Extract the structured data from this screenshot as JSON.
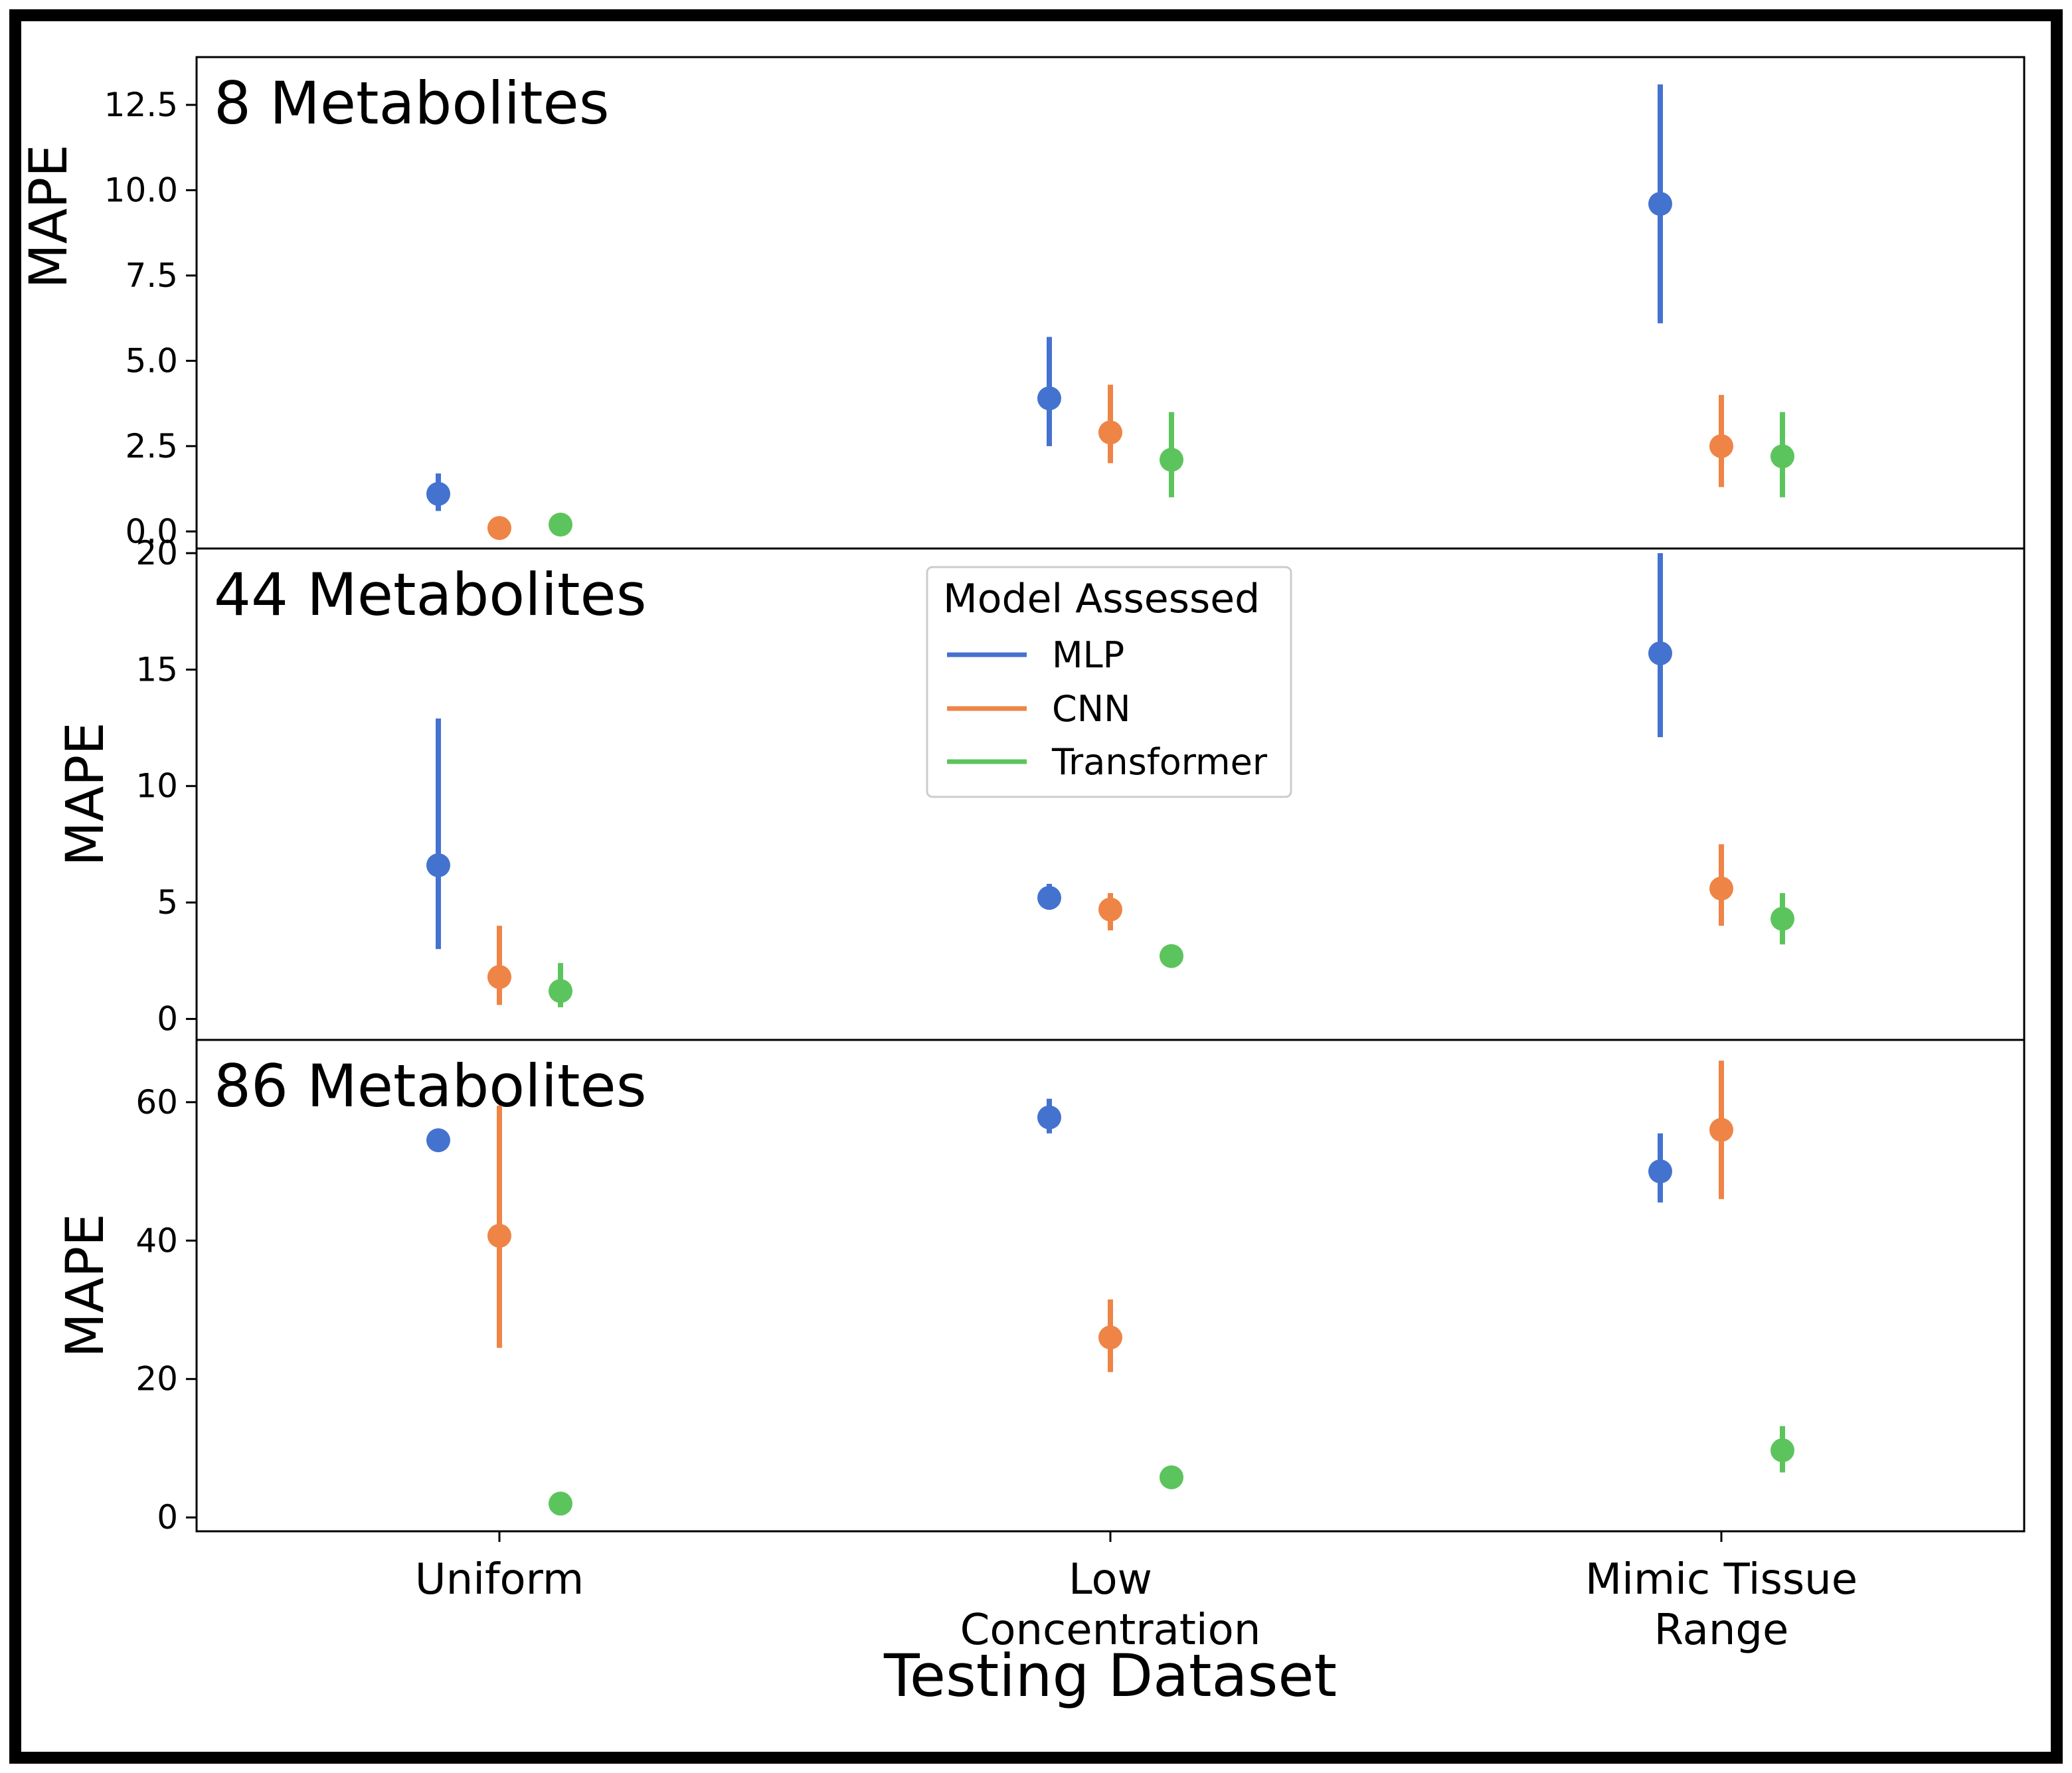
{
  "chart_data": {
    "type": "pointplot",
    "xlabel": "Testing Dataset",
    "categories": [
      [
        "Uniform"
      ],
      [
        "Low",
        "Concentration"
      ],
      [
        "Mimic Tissue",
        "Range"
      ]
    ],
    "colors": {
      "MLP": "#4472cf",
      "CNN": "#ee8446",
      "Transformer": "#5cc45c"
    },
    "legend": {
      "title": "Model Assessed",
      "entries": [
        "MLP",
        "CNN",
        "Transformer"
      ],
      "location": "upper-center (middle panel)"
    },
    "panels": [
      {
        "title": "8 Metabolites",
        "ylabel": "MAPE",
        "ylim": [
          -0.5,
          13.9
        ],
        "yticks": [
          0,
          2.5,
          5,
          7.5,
          10,
          12.5
        ],
        "ytick_labels": [
          "0.0",
          "2.5",
          "5.0",
          "7.5",
          "10.0",
          "12.5"
        ],
        "series": [
          {
            "name": "MLP",
            "values": [
              1.1,
              3.9,
              9.6
            ],
            "err_low": [
              0.6,
              2.5,
              6.1
            ],
            "err_high": [
              1.7,
              5.7,
              13.1
            ]
          },
          {
            "name": "CNN",
            "values": [
              0.1,
              2.9,
              2.5
            ],
            "err_low": [
              0.05,
              2.0,
              1.3
            ],
            "err_high": [
              0.15,
              4.3,
              4.0
            ]
          },
          {
            "name": "Transformer",
            "values": [
              0.2,
              2.1,
              2.2
            ],
            "err_low": [
              0.15,
              1.0,
              1.0
            ],
            "err_high": [
              0.3,
              3.5,
              3.5
            ]
          }
        ]
      },
      {
        "title": "44 Metabolites",
        "ylabel": "MAPE",
        "ylim": [
          -0.9,
          20.2
        ],
        "yticks": [
          0,
          5,
          10,
          15,
          20
        ],
        "ytick_labels": [
          "0",
          "5",
          "10",
          "15",
          "20"
        ],
        "series": [
          {
            "name": "MLP",
            "values": [
              6.6,
              5.2,
              15.7
            ],
            "err_low": [
              3.0,
              4.7,
              12.1
            ],
            "err_high": [
              12.9,
              5.8,
              20.0
            ]
          },
          {
            "name": "CNN",
            "values": [
              1.8,
              4.7,
              5.6
            ],
            "err_low": [
              0.6,
              3.8,
              4.0
            ],
            "err_high": [
              4.0,
              5.4,
              7.5
            ]
          },
          {
            "name": "Transformer",
            "values": [
              1.2,
              2.7,
              4.3
            ],
            "err_low": [
              0.5,
              2.6,
              3.2
            ],
            "err_high": [
              2.4,
              2.8,
              5.4
            ]
          }
        ]
      },
      {
        "title": "86 Metabolites",
        "ylabel": "MAPE",
        "ylim": [
          -2,
          69
        ],
        "yticks": [
          0,
          20,
          40,
          60
        ],
        "ytick_labels": [
          "0",
          "20",
          "40",
          "60"
        ],
        "series": [
          {
            "name": "MLP",
            "values": [
              54.5,
              57.8,
              50.0
            ],
            "err_low": [
              54.0,
              55.5,
              45.5
            ],
            "err_high": [
              55.0,
              60.5,
              55.5
            ]
          },
          {
            "name": "CNN",
            "values": [
              40.7,
              26.0,
              56.0
            ],
            "err_low": [
              24.5,
              21.0,
              46.0
            ],
            "err_high": [
              59.5,
              31.5,
              66.0
            ]
          },
          {
            "name": "Transformer",
            "values": [
              2.0,
              5.8,
              9.7
            ],
            "err_low": [
              1.8,
              5.6,
              6.5
            ],
            "err_high": [
              2.2,
              6.0,
              13.2
            ]
          }
        ]
      }
    ]
  }
}
